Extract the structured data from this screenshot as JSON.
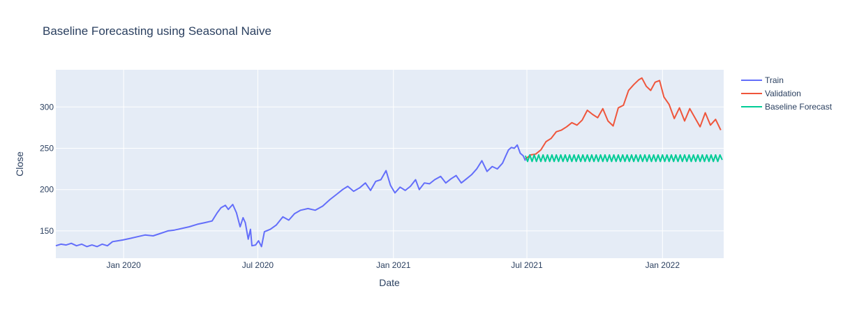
{
  "chart_data": {
    "type": "line",
    "title": "Baseline Forecasting using Seasonal Naive",
    "xlabel": "Date",
    "ylabel": "Close",
    "xlim": [
      "2019-10-01",
      "2022-03-25"
    ],
    "ylim": [
      117,
      345
    ],
    "x_ticks": [
      "2020-01-01",
      "2020-07-01",
      "2021-01-01",
      "2021-07-01",
      "2022-01-01"
    ],
    "x_tick_labels": [
      "Jan 2020",
      "Jul 2020",
      "Jan 2021",
      "Jul 2021",
      "Jan 2022"
    ],
    "y_ticks": [
      150,
      200,
      250,
      300
    ],
    "y_tick_labels": [
      "150",
      "200",
      "250",
      "300"
    ],
    "grid": true,
    "legend_position": "right",
    "background": "#e5ecf6",
    "series": [
      {
        "name": "Train",
        "color": "#636efa",
        "points": [
          [
            "2019-10-01",
            132
          ],
          [
            "2019-10-08",
            134
          ],
          [
            "2019-10-15",
            133
          ],
          [
            "2019-10-22",
            135
          ],
          [
            "2019-10-29",
            132
          ],
          [
            "2019-11-05",
            134
          ],
          [
            "2019-11-12",
            131
          ],
          [
            "2019-11-19",
            133
          ],
          [
            "2019-11-26",
            131
          ],
          [
            "2019-12-03",
            134
          ],
          [
            "2019-12-10",
            132
          ],
          [
            "2019-12-17",
            137
          ],
          [
            "2019-12-24",
            138
          ],
          [
            "2019-12-31",
            139
          ],
          [
            "2020-01-10",
            141
          ],
          [
            "2020-01-20",
            143
          ],
          [
            "2020-01-30",
            145
          ],
          [
            "2020-02-10",
            144
          ],
          [
            "2020-02-20",
            147
          ],
          [
            "2020-03-01",
            150
          ],
          [
            "2020-03-10",
            151
          ],
          [
            "2020-03-20",
            153
          ],
          [
            "2020-03-30",
            155
          ],
          [
            "2020-04-10",
            158
          ],
          [
            "2020-04-20",
            160
          ],
          [
            "2020-04-30",
            162
          ],
          [
            "2020-05-07",
            172
          ],
          [
            "2020-05-12",
            178
          ],
          [
            "2020-05-18",
            181
          ],
          [
            "2020-05-22",
            176
          ],
          [
            "2020-05-28",
            182
          ],
          [
            "2020-06-02",
            172
          ],
          [
            "2020-06-07",
            155
          ],
          [
            "2020-06-11",
            166
          ],
          [
            "2020-06-14",
            160
          ],
          [
            "2020-06-18",
            140
          ],
          [
            "2020-06-21",
            152
          ],
          [
            "2020-06-23",
            132
          ],
          [
            "2020-06-28",
            133
          ],
          [
            "2020-07-02",
            138
          ],
          [
            "2020-07-06",
            131
          ],
          [
            "2020-07-10",
            149
          ],
          [
            "2020-07-18",
            152
          ],
          [
            "2020-07-26",
            157
          ],
          [
            "2020-08-04",
            167
          ],
          [
            "2020-08-12",
            163
          ],
          [
            "2020-08-20",
            171
          ],
          [
            "2020-08-28",
            175
          ],
          [
            "2020-09-07",
            177
          ],
          [
            "2020-09-17",
            175
          ],
          [
            "2020-09-27",
            180
          ],
          [
            "2020-10-07",
            188
          ],
          [
            "2020-10-17",
            195
          ],
          [
            "2020-10-24",
            200
          ],
          [
            "2020-10-31",
            204
          ],
          [
            "2020-11-08",
            198
          ],
          [
            "2020-11-16",
            202
          ],
          [
            "2020-11-24",
            208
          ],
          [
            "2020-12-01",
            199
          ],
          [
            "2020-12-08",
            210
          ],
          [
            "2020-12-15",
            212
          ],
          [
            "2020-12-22",
            223
          ],
          [
            "2020-12-28",
            205
          ],
          [
            "2021-01-03",
            196
          ],
          [
            "2021-01-10",
            203
          ],
          [
            "2021-01-17",
            199
          ],
          [
            "2021-01-24",
            204
          ],
          [
            "2021-01-31",
            212
          ],
          [
            "2021-02-05",
            200
          ],
          [
            "2021-02-12",
            208
          ],
          [
            "2021-02-19",
            207
          ],
          [
            "2021-02-26",
            212
          ],
          [
            "2021-03-06",
            216
          ],
          [
            "2021-03-13",
            208
          ],
          [
            "2021-03-20",
            213
          ],
          [
            "2021-03-27",
            217
          ],
          [
            "2021-04-03",
            208
          ],
          [
            "2021-04-10",
            213
          ],
          [
            "2021-04-17",
            218
          ],
          [
            "2021-04-24",
            225
          ],
          [
            "2021-05-01",
            235
          ],
          [
            "2021-05-08",
            222
          ],
          [
            "2021-05-15",
            228
          ],
          [
            "2021-05-22",
            225
          ],
          [
            "2021-05-29",
            232
          ],
          [
            "2021-06-02",
            240
          ],
          [
            "2021-06-06",
            248
          ],
          [
            "2021-06-10",
            251
          ],
          [
            "2021-06-14",
            250
          ],
          [
            "2021-06-18",
            254
          ],
          [
            "2021-06-22",
            244
          ],
          [
            "2021-06-26",
            241
          ],
          [
            "2021-06-29",
            235
          ]
        ]
      },
      {
        "name": "Validation",
        "color": "#ef553b",
        "points": [
          [
            "2021-06-29",
            237
          ],
          [
            "2021-07-06",
            242
          ],
          [
            "2021-07-13",
            243
          ],
          [
            "2021-07-20",
            248
          ],
          [
            "2021-07-27",
            258
          ],
          [
            "2021-08-03",
            262
          ],
          [
            "2021-08-10",
            270
          ],
          [
            "2021-08-17",
            272
          ],
          [
            "2021-08-24",
            276
          ],
          [
            "2021-08-31",
            281
          ],
          [
            "2021-09-07",
            278
          ],
          [
            "2021-09-14",
            284
          ],
          [
            "2021-09-21",
            296
          ],
          [
            "2021-09-28",
            291
          ],
          [
            "2021-10-05",
            287
          ],
          [
            "2021-10-12",
            298
          ],
          [
            "2021-10-19",
            283
          ],
          [
            "2021-10-26",
            277
          ],
          [
            "2021-11-02",
            299
          ],
          [
            "2021-11-09",
            302
          ],
          [
            "2021-11-16",
            320
          ],
          [
            "2021-11-23",
            327
          ],
          [
            "2021-11-30",
            333
          ],
          [
            "2021-12-04",
            335
          ],
          [
            "2021-12-10",
            325
          ],
          [
            "2021-12-16",
            320
          ],
          [
            "2021-12-22",
            330
          ],
          [
            "2021-12-28",
            332
          ],
          [
            "2022-01-03",
            312
          ],
          [
            "2022-01-10",
            303
          ],
          [
            "2022-01-17",
            286
          ],
          [
            "2022-01-24",
            299
          ],
          [
            "2022-01-31",
            283
          ],
          [
            "2022-02-07",
            298
          ],
          [
            "2022-02-14",
            287
          ],
          [
            "2022-02-21",
            276
          ],
          [
            "2022-02-28",
            293
          ],
          [
            "2022-03-07",
            278
          ],
          [
            "2022-03-14",
            285
          ],
          [
            "2022-03-21",
            272
          ]
        ]
      },
      {
        "name": "Baseline Forecast",
        "color": "#00cc96",
        "points": [
          [
            "2021-06-29",
            241
          ],
          [
            "2021-07-02",
            234
          ],
          [
            "2021-07-05",
            242
          ],
          [
            "2021-07-08",
            234
          ],
          [
            "2021-07-11",
            242
          ],
          [
            "2021-07-14",
            234
          ],
          [
            "2021-07-17",
            242
          ],
          [
            "2021-07-20",
            234
          ],
          [
            "2021-07-23",
            242
          ],
          [
            "2021-07-26",
            234
          ],
          [
            "2021-07-29",
            242
          ],
          [
            "2021-08-01",
            234
          ],
          [
            "2021-08-04",
            242
          ],
          [
            "2021-08-07",
            234
          ],
          [
            "2021-08-10",
            242
          ],
          [
            "2021-08-13",
            234
          ],
          [
            "2021-08-16",
            242
          ],
          [
            "2021-08-19",
            234
          ],
          [
            "2021-08-22",
            242
          ],
          [
            "2021-08-25",
            234
          ],
          [
            "2021-08-28",
            242
          ],
          [
            "2021-08-31",
            234
          ],
          [
            "2021-09-03",
            242
          ],
          [
            "2021-09-06",
            234
          ],
          [
            "2021-09-09",
            242
          ],
          [
            "2021-09-12",
            234
          ],
          [
            "2021-09-15",
            242
          ],
          [
            "2021-09-18",
            234
          ],
          [
            "2021-09-21",
            242
          ],
          [
            "2021-09-24",
            234
          ],
          [
            "2021-09-27",
            242
          ],
          [
            "2021-09-30",
            234
          ],
          [
            "2021-10-03",
            242
          ],
          [
            "2021-10-06",
            234
          ],
          [
            "2021-10-09",
            242
          ],
          [
            "2021-10-12",
            234
          ],
          [
            "2021-10-15",
            242
          ],
          [
            "2021-10-18",
            234
          ],
          [
            "2021-10-21",
            242
          ],
          [
            "2021-10-24",
            234
          ],
          [
            "2021-10-27",
            242
          ],
          [
            "2021-10-30",
            234
          ],
          [
            "2021-11-02",
            242
          ],
          [
            "2021-11-05",
            234
          ],
          [
            "2021-11-08",
            242
          ],
          [
            "2021-11-11",
            234
          ],
          [
            "2021-11-14",
            242
          ],
          [
            "2021-11-17",
            234
          ],
          [
            "2021-11-20",
            242
          ],
          [
            "2021-11-23",
            234
          ],
          [
            "2021-11-26",
            242
          ],
          [
            "2021-11-29",
            234
          ],
          [
            "2021-12-02",
            242
          ],
          [
            "2021-12-05",
            234
          ],
          [
            "2021-12-08",
            242
          ],
          [
            "2021-12-11",
            234
          ],
          [
            "2021-12-14",
            242
          ],
          [
            "2021-12-17",
            234
          ],
          [
            "2021-12-20",
            242
          ],
          [
            "2021-12-23",
            234
          ],
          [
            "2021-12-26",
            242
          ],
          [
            "2021-12-29",
            234
          ],
          [
            "2022-01-01",
            242
          ],
          [
            "2022-01-04",
            234
          ],
          [
            "2022-01-07",
            242
          ],
          [
            "2022-01-10",
            234
          ],
          [
            "2022-01-13",
            242
          ],
          [
            "2022-01-16",
            234
          ],
          [
            "2022-01-19",
            242
          ],
          [
            "2022-01-22",
            234
          ],
          [
            "2022-01-25",
            242
          ],
          [
            "2022-01-28",
            234
          ],
          [
            "2022-01-31",
            242
          ],
          [
            "2022-02-03",
            234
          ],
          [
            "2022-02-06",
            242
          ],
          [
            "2022-02-09",
            234
          ],
          [
            "2022-02-12",
            242
          ],
          [
            "2022-02-15",
            234
          ],
          [
            "2022-02-18",
            242
          ],
          [
            "2022-02-21",
            234
          ],
          [
            "2022-02-24",
            242
          ],
          [
            "2022-02-27",
            234
          ],
          [
            "2022-03-02",
            242
          ],
          [
            "2022-03-05",
            234
          ],
          [
            "2022-03-08",
            242
          ],
          [
            "2022-03-11",
            234
          ],
          [
            "2022-03-14",
            242
          ],
          [
            "2022-03-17",
            234
          ],
          [
            "2022-03-20",
            242
          ],
          [
            "2022-03-23",
            236
          ]
        ]
      }
    ]
  }
}
